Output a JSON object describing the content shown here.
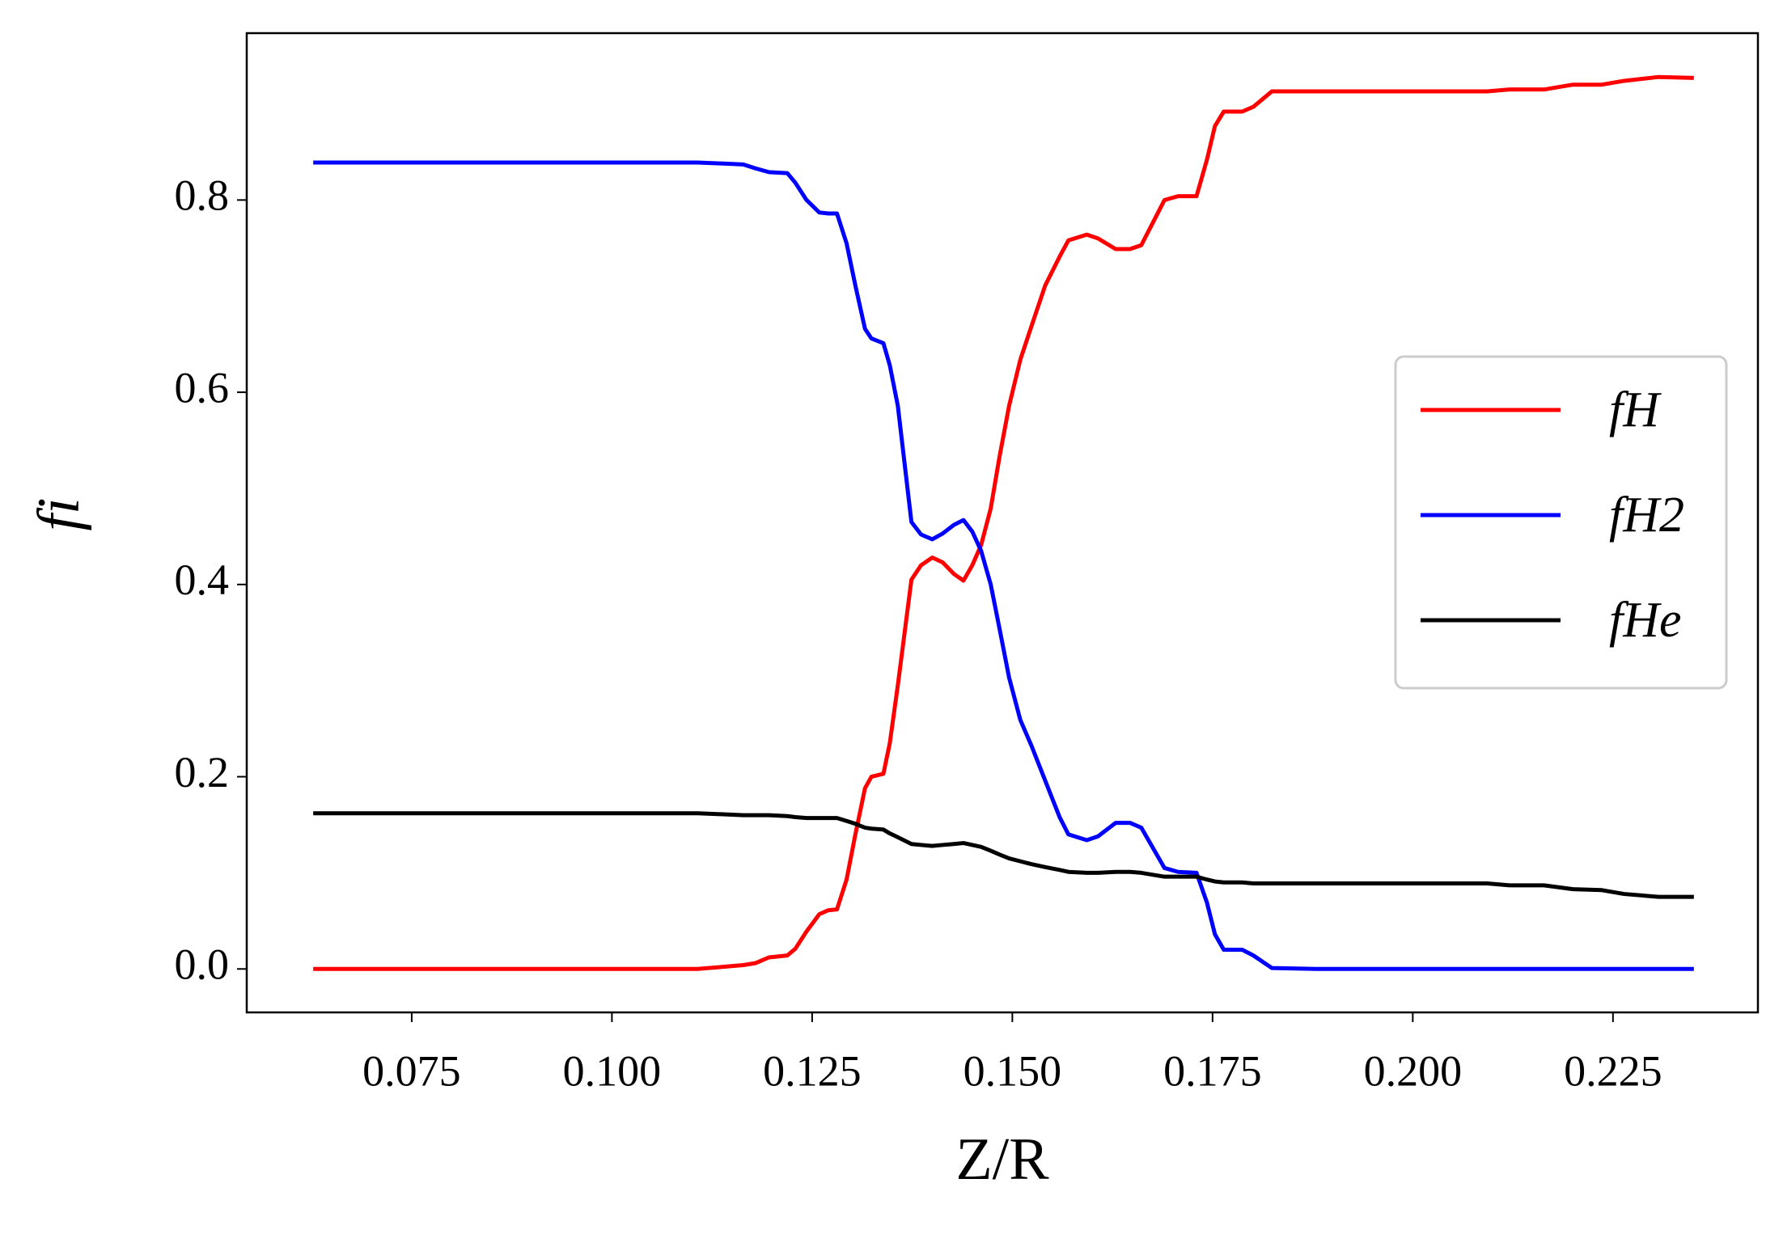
{
  "chart_data": {
    "type": "line",
    "x_label": "Z/R",
    "y_label": "fi",
    "x": [
      0.0627,
      0.1107,
      0.1136,
      0.1164,
      0.1179,
      0.1196,
      0.1219,
      0.1229,
      0.1243,
      0.1259,
      0.127,
      0.1281,
      0.1293,
      0.1304,
      0.1316,
      0.1324,
      0.1339,
      0.1347,
      0.1357,
      0.1374,
      0.1386,
      0.14,
      0.1413,
      0.1427,
      0.1439,
      0.145,
      0.1461,
      0.1473,
      0.1484,
      0.1496,
      0.151,
      0.1524,
      0.1541,
      0.1559,
      0.157,
      0.1593,
      0.1607,
      0.1629,
      0.1647,
      0.1661,
      0.169,
      0.1707,
      0.173,
      0.1743,
      0.1753,
      0.1764,
      0.1787,
      0.1801,
      0.1824,
      0.1879,
      0.2093,
      0.2121,
      0.2164,
      0.22,
      0.2236,
      0.2264,
      0.2307,
      0.2351
    ],
    "series": [
      {
        "name": "fH",
        "color": "#ff0000",
        "values": [
          0,
          0,
          0.002,
          0.004,
          0.006,
          0.012,
          0.014,
          0.021,
          0.039,
          0.057,
          0.061,
          0.062,
          0.093,
          0.14,
          0.188,
          0.2,
          0.203,
          0.235,
          0.295,
          0.405,
          0.42,
          0.428,
          0.423,
          0.411,
          0.404,
          0.42,
          0.441,
          0.479,
          0.533,
          0.586,
          0.634,
          0.669,
          0.711,
          0.741,
          0.758,
          0.764,
          0.76,
          0.749,
          0.749,
          0.753,
          0.8,
          0.804,
          0.804,
          0.842,
          0.877,
          0.892,
          0.892,
          0.897,
          0.913,
          0.913,
          0.913,
          0.915,
          0.915,
          0.92,
          0.92,
          0.924,
          0.928,
          0.927
        ]
      },
      {
        "name": "fH2",
        "color": "#0000ff",
        "values": [
          0.839,
          0.839,
          0.838,
          0.837,
          0.833,
          0.829,
          0.828,
          0.818,
          0.8,
          0.787,
          0.786,
          0.786,
          0.755,
          0.711,
          0.666,
          0.656,
          0.651,
          0.628,
          0.586,
          0.465,
          0.452,
          0.447,
          0.453,
          0.462,
          0.467,
          0.455,
          0.435,
          0.4,
          0.354,
          0.303,
          0.259,
          0.232,
          0.196,
          0.158,
          0.14,
          0.134,
          0.138,
          0.152,
          0.152,
          0.147,
          0.105,
          0.101,
          0.1,
          0.069,
          0.036,
          0.02,
          0.02,
          0.014,
          0.001,
          0,
          0,
          0,
          0,
          0,
          0,
          0,
          0,
          0
        ]
      },
      {
        "name": "fHe",
        "color": "#000000",
        "values": [
          0.162,
          0.162,
          0.161,
          0.16,
          0.16,
          0.16,
          0.159,
          0.158,
          0.157,
          0.157,
          0.157,
          0.157,
          0.154,
          0.151,
          0.147,
          0.146,
          0.145,
          0.141,
          0.137,
          0.13,
          0.129,
          0.128,
          0.129,
          0.13,
          0.131,
          0.129,
          0.127,
          0.123,
          0.119,
          0.115,
          0.112,
          0.109,
          0.106,
          0.103,
          0.101,
          0.1,
          0.1,
          0.101,
          0.101,
          0.1,
          0.096,
          0.096,
          0.096,
          0.093,
          0.091,
          0.09,
          0.09,
          0.089,
          0.089,
          0.089,
          0.089,
          0.087,
          0.087,
          0.083,
          0.082,
          0.078,
          0.075,
          0.075
        ]
      }
    ],
    "xlim": [
      0.0544,
      0.2431
    ],
    "ylim": [
      -0.0452,
      0.9736
    ],
    "xticks": [
      0.075,
      {
        "value": 0.1,
        "label": "0.100"
      },
      0.125,
      {
        "value": 0.15,
        "label": "0.150"
      },
      0.175,
      {
        "value": 0.2,
        "label": "0.200"
      },
      0.225
    ],
    "yticks": [
      {
        "value": 0,
        "label": "0.0"
      },
      0.2,
      0.4,
      0.6,
      0.8
    ],
    "grid": false,
    "legend": "right"
  }
}
